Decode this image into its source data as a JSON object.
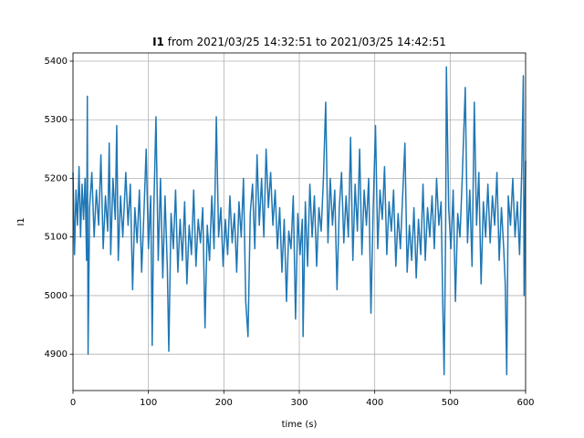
{
  "chart_data": {
    "type": "line",
    "title": {
      "bold": "I1",
      "rest": "from 2021/03/25 14:32:51 to 2021/03/25 14:42:51"
    },
    "xlabel": "time (s)",
    "ylabel": "I1",
    "x": [
      0,
      2,
      4,
      6,
      8,
      10,
      12,
      14,
      16,
      18,
      19,
      20,
      22,
      25,
      28,
      31,
      34,
      37,
      40,
      43,
      46,
      48,
      50,
      53,
      56,
      58,
      60,
      63,
      66,
      70,
      73,
      76,
      79,
      82,
      85,
      88,
      91,
      94,
      97,
      100,
      103,
      105,
      107,
      110,
      113,
      116,
      119,
      122,
      125,
      127,
      130,
      133,
      136,
      139,
      142,
      145,
      148,
      151,
      154,
      157,
      160,
      163,
      166,
      169,
      172,
      175,
      178,
      181,
      184,
      187,
      190,
      193,
      196,
      199,
      202,
      205,
      208,
      211,
      214,
      217,
      220,
      223,
      226,
      229,
      232,
      235,
      238,
      241,
      244,
      247,
      250,
      253,
      256,
      259,
      262,
      265,
      268,
      271,
      274,
      277,
      280,
      283,
      286,
      289,
      292,
      295,
      298,
      301,
      304,
      305,
      308,
      311,
      314,
      317,
      320,
      323,
      326,
      329,
      332,
      335,
      338,
      341,
      344,
      347,
      350,
      353,
      356,
      359,
      362,
      365,
      368,
      371,
      374,
      377,
      380,
      383,
      386,
      389,
      392,
      395,
      398,
      401,
      404,
      407,
      410,
      413,
      416,
      419,
      422,
      425,
      428,
      431,
      434,
      437,
      440,
      443,
      446,
      449,
      452,
      455,
      458,
      461,
      464,
      467,
      470,
      473,
      476,
      479,
      482,
      485,
      488,
      490,
      492,
      494,
      495,
      498,
      501,
      504,
      507,
      510,
      513,
      516,
      520,
      523,
      526,
      529,
      532,
      535,
      538,
      541,
      544,
      547,
      550,
      553,
      556,
      559,
      562,
      565,
      568,
      571,
      573,
      575,
      577,
      580,
      583,
      586,
      589,
      592,
      595,
      597,
      598,
      600
    ],
    "series": [
      {
        "name": "I1",
        "color": "#1f77b4",
        "values": [
          5210,
          5070,
          5180,
          5120,
          5220,
          5100,
          5190,
          5130,
          5200,
          5060,
          5340,
          4900,
          5150,
          5210,
          5100,
          5180,
          5120,
          5240,
          5080,
          5170,
          5110,
          5260,
          5070,
          5200,
          5130,
          5290,
          5060,
          5170,
          5100,
          5210,
          5120,
          5190,
          5010,
          5150,
          5090,
          5180,
          5040,
          5140,
          5250,
          5080,
          5170,
          4915,
          5140,
          5305,
          5060,
          5200,
          5030,
          5170,
          5050,
          4905,
          5140,
          5080,
          5180,
          5040,
          5130,
          5060,
          5160,
          5020,
          5120,
          5070,
          5180,
          5050,
          5130,
          5090,
          5150,
          4945,
          5120,
          5060,
          5170,
          5080,
          5305,
          5100,
          5150,
          5050,
          5130,
          5070,
          5170,
          5090,
          5140,
          5040,
          5160,
          5100,
          5200,
          4990,
          4930,
          5140,
          5190,
          5080,
          5240,
          5120,
          5200,
          5100,
          5250,
          5150,
          5210,
          5120,
          5180,
          5080,
          5150,
          5040,
          5130,
          4990,
          5110,
          5080,
          5170,
          4960,
          5140,
          5070,
          5130,
          4930,
          5160,
          5050,
          5190,
          5100,
          5170,
          5050,
          5150,
          5110,
          5200,
          5330,
          5090,
          5200,
          5120,
          5180,
          5010,
          5150,
          5210,
          5090,
          5170,
          5100,
          5270,
          5060,
          5190,
          5110,
          5250,
          5070,
          5180,
          5120,
          5200,
          4970,
          5150,
          5290,
          5080,
          5180,
          5130,
          5220,
          5070,
          5160,
          5110,
          5180,
          5050,
          5140,
          5080,
          5170,
          5260,
          5040,
          5120,
          5060,
          5150,
          5030,
          5130,
          5070,
          5190,
          5060,
          5150,
          5100,
          5170,
          5080,
          5200,
          5120,
          5160,
          5000,
          4865,
          5110,
          5390,
          5150,
          5080,
          5180,
          4990,
          5140,
          5100,
          5200,
          5355,
          5090,
          5180,
          5050,
          5330,
          5120,
          5210,
          5020,
          5160,
          5100,
          5190,
          5090,
          5170,
          5120,
          5210,
          5060,
          5150,
          5080,
          5020,
          4865,
          5170,
          5120,
          5200,
          5100,
          5160,
          5070,
          5220,
          5375,
          5000,
          5230
        ]
      }
    ],
    "xlim": [
      0,
      600
    ],
    "ylim": [
      4838,
      5414
    ],
    "xticks": [
      0,
      100,
      200,
      300,
      400,
      500,
      600
    ],
    "yticks": [
      4900,
      5000,
      5100,
      5200,
      5300,
      5400
    ],
    "grid": true
  }
}
